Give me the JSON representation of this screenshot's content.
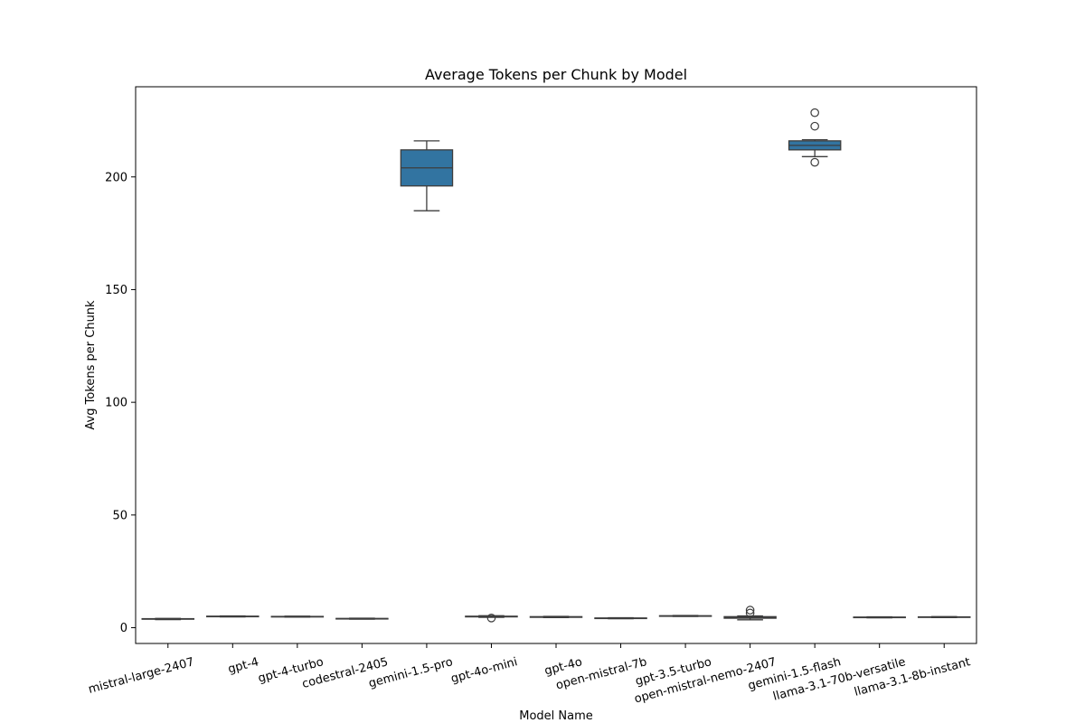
{
  "chart_data": {
    "type": "box",
    "title": "Average Tokens per Chunk by Model",
    "xlabel": "Model Name",
    "ylabel": "Avg Tokens per Chunk",
    "ylim": [
      -7,
      240
    ],
    "yticks": [
      0,
      50,
      100,
      150,
      200
    ],
    "grid": false,
    "box_color": "#3274a1",
    "edge_color": "#3d3d3d",
    "categories": [
      "mistral-large-2407",
      "gpt-4",
      "gpt-4-turbo",
      "codestral-2405",
      "gemini-1.5-pro",
      "gpt-4o-mini",
      "gpt-4o",
      "open-mistral-7b",
      "gpt-3.5-turbo",
      "open-mistral-nemo-2407",
      "gemini-1.5-flash",
      "llama-3.1-70b-versatile",
      "llama-3.1-8b-instant"
    ],
    "boxes": [
      {
        "min": 3.6,
        "q1": 3.8,
        "median": 3.9,
        "q3": 4.0,
        "max": 4.1,
        "outliers": []
      },
      {
        "min": 4.8,
        "q1": 4.9,
        "median": 5.0,
        "q3": 5.1,
        "max": 5.2,
        "outliers": []
      },
      {
        "min": 4.7,
        "q1": 4.8,
        "median": 4.9,
        "q3": 5.0,
        "max": 5.1,
        "outliers": []
      },
      {
        "min": 3.8,
        "q1": 3.9,
        "median": 4.0,
        "q3": 4.1,
        "max": 4.2,
        "outliers": []
      },
      {
        "min": 185,
        "q1": 196,
        "median": 204,
        "q3": 212,
        "max": 216,
        "outliers": []
      },
      {
        "min": 4.6,
        "q1": 4.8,
        "median": 4.9,
        "q3": 5.1,
        "max": 5.3,
        "outliers": [
          4.3
        ]
      },
      {
        "min": 4.5,
        "q1": 4.6,
        "median": 4.7,
        "q3": 4.9,
        "max": 5.0,
        "outliers": []
      },
      {
        "min": 4.0,
        "q1": 4.1,
        "median": 4.2,
        "q3": 4.3,
        "max": 4.4,
        "outliers": []
      },
      {
        "min": 5.0,
        "q1": 5.1,
        "median": 5.2,
        "q3": 5.3,
        "max": 5.4,
        "outliers": []
      },
      {
        "min": 3.5,
        "q1": 4.2,
        "median": 4.5,
        "q3": 4.9,
        "max": 5.2,
        "outliers": [
          6.5,
          7.8
        ]
      },
      {
        "min": 209,
        "q1": 212,
        "median": 214,
        "q3": 216,
        "max": 216.5,
        "outliers": [
          206.5,
          222.5,
          228.5
        ]
      },
      {
        "min": 4.4,
        "q1": 4.5,
        "median": 4.6,
        "q3": 4.7,
        "max": 4.8,
        "outliers": []
      },
      {
        "min": 4.5,
        "q1": 4.6,
        "median": 4.7,
        "q3": 4.8,
        "max": 4.9,
        "outliers": []
      }
    ]
  }
}
